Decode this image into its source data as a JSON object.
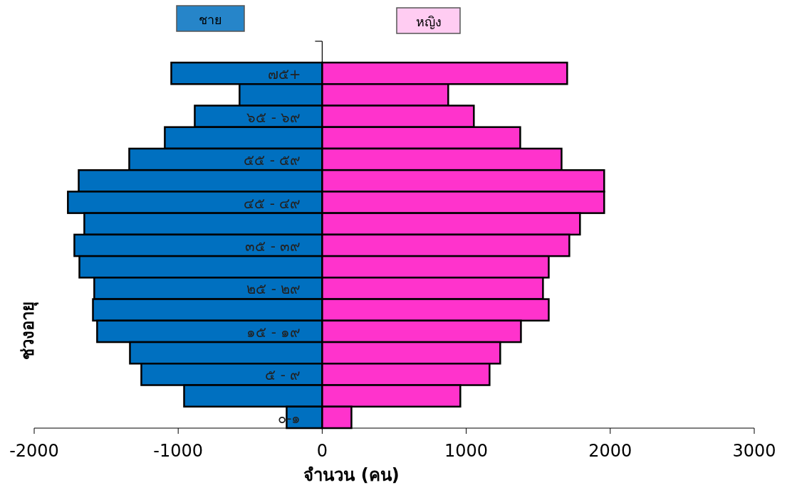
{
  "chart_data": {
    "type": "bar",
    "orientation": "horizontal",
    "stacked": true,
    "xlabel": "จำนวน (คน)",
    "ylabel": "ช่วงอายุ",
    "categories": [
      "๗๕+",
      null,
      "๖๕ - ๖๙",
      null,
      "๕๕ - ๕๙",
      null,
      "๔๕ - ๔๙",
      null,
      "๓๕ - ๓๙",
      null,
      "๒๕ - ๒๙",
      null,
      "๑๕ - ๑๙",
      null,
      "๕ - ๙",
      null,
      "๐-๑"
    ],
    "series": [
      {
        "name": "ชาย",
        "color": "#0070c0",
        "values": [
          -1048,
          -574,
          -885,
          -1093,
          -1340,
          -1691,
          -1766,
          -1652,
          -1721,
          -1686,
          -1583,
          -1592,
          -1563,
          -1335,
          -1256,
          -959,
          -247
        ]
      },
      {
        "name": "หญิง",
        "color": "#ff33cc",
        "values": [
          1701,
          875,
          1053,
          1375,
          1662,
          1958,
          1958,
          1790,
          1716,
          1573,
          1533,
          1573,
          1380,
          1236,
          1162,
          959,
          203
        ]
      }
    ],
    "xlim": [
      -2000,
      3000
    ],
    "xticks": [
      -2000,
      -1000,
      0,
      1000,
      2000,
      3000
    ],
    "legend": "top",
    "grid": false
  }
}
